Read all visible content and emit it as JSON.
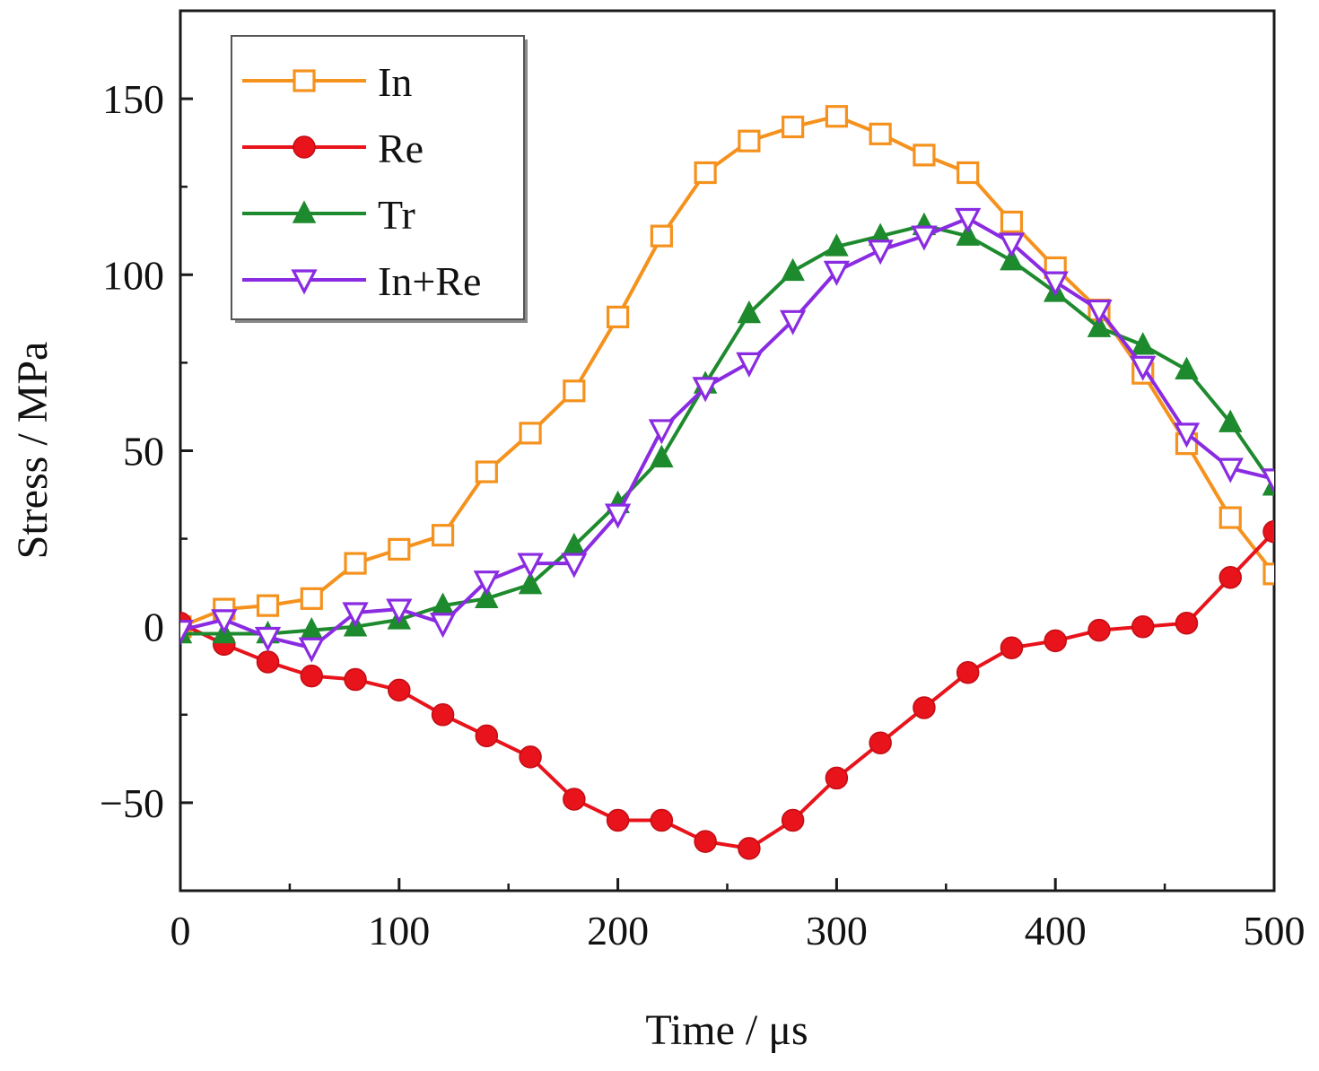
{
  "chart_data": {
    "type": "line",
    "title": "",
    "xlabel": "Time / μs",
    "ylabel": "Stress / MPa",
    "xlim": [
      0,
      500
    ],
    "ylim": [
      -75,
      175
    ],
    "x_ticks": [
      0,
      100,
      200,
      300,
      400,
      500
    ],
    "x_tick_labels": [
      "0",
      "100",
      "200",
      "300",
      "400",
      "500"
    ],
    "y_ticks": [
      -50,
      0,
      50,
      100,
      150
    ],
    "y_tick_labels": [
      "−50",
      "0",
      "50",
      "100",
      "150"
    ],
    "grid": false,
    "legend_position": "top-left",
    "x": [
      0,
      20,
      40,
      60,
      80,
      100,
      120,
      140,
      160,
      180,
      200,
      220,
      240,
      260,
      280,
      300,
      320,
      340,
      360,
      380,
      400,
      420,
      440,
      460,
      480,
      500
    ],
    "series": [
      {
        "name": "In",
        "color": "#f5921e",
        "marker": "open-square",
        "values": [
          0,
          5,
          6,
          8,
          18,
          22,
          26,
          44,
          55,
          67,
          88,
          111,
          129,
          138,
          142,
          145,
          140,
          134,
          129,
          115,
          102,
          90,
          72,
          52,
          31,
          15
        ]
      },
      {
        "name": "Re",
        "color": "#e8131b",
        "marker": "filled-circle",
        "values": [
          1,
          -5,
          -10,
          -14,
          -15,
          -18,
          -25,
          -31,
          -37,
          -49,
          -55,
          -55,
          -61,
          -63,
          -55,
          -43,
          -33,
          -23,
          -13,
          -6,
          -4,
          -1,
          0,
          1,
          14,
          27
        ]
      },
      {
        "name": "Tr",
        "color": "#1e8a2e",
        "marker": "filled-triangle",
        "values": [
          -2,
          -2,
          -2,
          -1,
          0,
          2,
          6,
          8,
          12,
          23,
          35,
          48,
          69,
          89,
          101,
          108,
          111,
          114,
          111,
          104,
          95,
          85,
          80,
          73,
          58,
          40
        ]
      },
      {
        "name": "In+Re",
        "color": "#8a2be2",
        "marker": "open-triangle-down",
        "values": [
          -1,
          2,
          -3,
          -6,
          4,
          5,
          1,
          13,
          18,
          18,
          32,
          56,
          68,
          75,
          87,
          101,
          107,
          111,
          116,
          109,
          98,
          90,
          74,
          55,
          45,
          42
        ]
      }
    ]
  }
}
